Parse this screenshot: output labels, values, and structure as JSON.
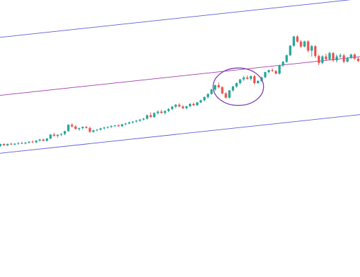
{
  "chart_data": {
    "type": "candlestick",
    "title": "",
    "xlabel": "",
    "ylabel": "",
    "grid": false,
    "legend": "none",
    "colors": {
      "up": "#26a69a",
      "down": "#ef5350",
      "channel_outer": "#5b5bd6",
      "channel_mid": "#a03aa8",
      "highlight": "#7a3fb0"
    },
    "ylim": [
      0,
      100
    ],
    "candles": [
      [
        45,
        46,
        44.5,
        45.8
      ],
      [
        45.8,
        46.2,
        45,
        45.2
      ],
      [
        45.2,
        46,
        44.8,
        45.9
      ],
      [
        45.9,
        46.5,
        45.3,
        45.6
      ],
      [
        45.6,
        46.1,
        45.2,
        46
      ],
      [
        46,
        46.6,
        45.5,
        46.3
      ],
      [
        46.3,
        46.8,
        45.8,
        46.1
      ],
      [
        46.1,
        46.7,
        45.7,
        46.5
      ],
      [
        46.5,
        47.1,
        46,
        46.9
      ],
      [
        46.9,
        47.5,
        46.3,
        46.6
      ],
      [
        46.6,
        47.6,
        46.2,
        47.4
      ],
      [
        47.4,
        48.2,
        47,
        47.9
      ],
      [
        47.9,
        48.3,
        47.2,
        47.3
      ],
      [
        47.3,
        48.6,
        47,
        48.4
      ],
      [
        48.4,
        50.5,
        48,
        50.2
      ],
      [
        50.2,
        51,
        49.3,
        49.6
      ],
      [
        49.6,
        50.4,
        48.8,
        50.1
      ],
      [
        50.1,
        50.8,
        49.5,
        50.5
      ],
      [
        50.5,
        52,
        50,
        51.8
      ],
      [
        51.8,
        55,
        51.5,
        54.8
      ],
      [
        54.8,
        55.5,
        53.5,
        54
      ],
      [
        54,
        54.6,
        52.5,
        52.8
      ],
      [
        52.8,
        53.5,
        52,
        53.2
      ],
      [
        53.2,
        54,
        52.7,
        53.8
      ],
      [
        53.8,
        54.2,
        53,
        53.3
      ],
      [
        53.3,
        53.9,
        51,
        51.5
      ],
      [
        51.5,
        52.5,
        51,
        52.2
      ],
      [
        52.2,
        52.8,
        51.7,
        52.5
      ],
      [
        52.5,
        53.4,
        52.1,
        53.1
      ],
      [
        53.1,
        53.8,
        52.6,
        53.5
      ],
      [
        53.5,
        54,
        53,
        53.8
      ],
      [
        53.8,
        54.5,
        53.3,
        54.2
      ],
      [
        54.2,
        54.7,
        53.8,
        54.5
      ],
      [
        54.5,
        55,
        53.9,
        54.1
      ],
      [
        54.1,
        55.2,
        53.8,
        55
      ],
      [
        55,
        55.6,
        54.6,
        55.4
      ],
      [
        55.4,
        56.2,
        55,
        55.9
      ],
      [
        55.9,
        56.5,
        55.3,
        56.3
      ],
      [
        56.3,
        57,
        55.8,
        56.7
      ],
      [
        56.7,
        57.4,
        56.1,
        57.2
      ],
      [
        57.2,
        58,
        56.8,
        57.6
      ],
      [
        57.6,
        59.5,
        57.2,
        59.2
      ],
      [
        59.2,
        60.5,
        58,
        58.4
      ],
      [
        58.4,
        60.6,
        58,
        60.2
      ],
      [
        60.2,
        61.5,
        59.6,
        60.9
      ],
      [
        60.9,
        61.8,
        60,
        60.3
      ],
      [
        60.3,
        61.5,
        59.5,
        61.2
      ],
      [
        61.2,
        62.5,
        60.7,
        62.1
      ],
      [
        62.1,
        63.5,
        61.6,
        63.2
      ],
      [
        63.2,
        64.5,
        62.5,
        64.1
      ],
      [
        64.1,
        64.8,
        63,
        63.3
      ],
      [
        63.3,
        64,
        62,
        62.5
      ],
      [
        62.5,
        63.6,
        62,
        63.4
      ],
      [
        63.4,
        64.8,
        63,
        64.5
      ],
      [
        64.5,
        65.2,
        63.5,
        63.9
      ],
      [
        63.9,
        65.5,
        63.5,
        65.2
      ],
      [
        65.2,
        66.5,
        64.8,
        66.2
      ],
      [
        66.2,
        68,
        65.7,
        67.7
      ],
      [
        67.7,
        69.5,
        67,
        69.1
      ],
      [
        69.1,
        71.5,
        68.8,
        71.2
      ],
      [
        71.2,
        73.5,
        70.5,
        73.2
      ],
      [
        73.2,
        74.5,
        71.8,
        72.3
      ],
      [
        72.3,
        72.8,
        69,
        69.4
      ],
      [
        69.4,
        70,
        67,
        67.4
      ],
      [
        67.4,
        71,
        67,
        70.8
      ],
      [
        70.8,
        73,
        70.2,
        72.6
      ],
      [
        72.6,
        74.5,
        72,
        74.2
      ],
      [
        74.2,
        76.2,
        73.6,
        75.9
      ],
      [
        75.9,
        77.5,
        75.2,
        76.8
      ],
      [
        76.8,
        77.8,
        75.8,
        76.2
      ],
      [
        76.2,
        77.8,
        75.4,
        77.4
      ],
      [
        77.4,
        78,
        73.5,
        74.2
      ],
      [
        74.2,
        75.5,
        73.8,
        75.2
      ],
      [
        75.2,
        77.2,
        74.8,
        76.9
      ],
      [
        76.9,
        79.5,
        76.5,
        79.3
      ],
      [
        79.3,
        80.5,
        78.8,
        80.2
      ],
      [
        80.2,
        81,
        79.5,
        79.8
      ],
      [
        79.8,
        80.3,
        78.3,
        78.6
      ],
      [
        78.6,
        82.8,
        78.2,
        82.4
      ],
      [
        82.4,
        84.5,
        81.7,
        84.1
      ],
      [
        84.1,
        87.5,
        83.6,
        87.2
      ],
      [
        87.2,
        92,
        86.8,
        91.6
      ],
      [
        91.6,
        96.2,
        91,
        95.9
      ],
      [
        95.9,
        96.5,
        93,
        93.5
      ],
      [
        93.5,
        94.3,
        90.5,
        91.2
      ],
      [
        91.2,
        94,
        90.8,
        93.6
      ],
      [
        93.6,
        94.2,
        88.5,
        89.3
      ],
      [
        89.3,
        92,
        86.5,
        91.4
      ],
      [
        91.4,
        91.8,
        86,
        86.8
      ],
      [
        86.8,
        87.5,
        82.5,
        83.6
      ],
      [
        83.6,
        87.2,
        83,
        86.6
      ],
      [
        86.6,
        87.8,
        84.5,
        85.3
      ],
      [
        85.3,
        88.8,
        84.8,
        88.2
      ],
      [
        88.2,
        88.6,
        84,
        84.8
      ],
      [
        84.8,
        87.5,
        83.8,
        86.6
      ],
      [
        86.6,
        88,
        85.9,
        87.1
      ],
      [
        87.1,
        87.8,
        83.5,
        84.2
      ],
      [
        84.2,
        86.5,
        83.7,
        85.9
      ],
      [
        85.9,
        88,
        85.4,
        87.5
      ],
      [
        87.5,
        88.1,
        85,
        85.6
      ],
      [
        85.6,
        86.2,
        84,
        84.5
      ]
    ],
    "channel_lines": [
      {
        "kind": "upper",
        "y_start": 95.5,
        "y_end": 113.5
      },
      {
        "kind": "middle",
        "y_start": 68.5,
        "y_end": 86.5
      },
      {
        "kind": "lower",
        "y_start": 41.5,
        "y_end": 59.5
      }
    ],
    "annotation": {
      "kind": "ellipse",
      "around_candles": [
        61,
        72
      ]
    }
  }
}
